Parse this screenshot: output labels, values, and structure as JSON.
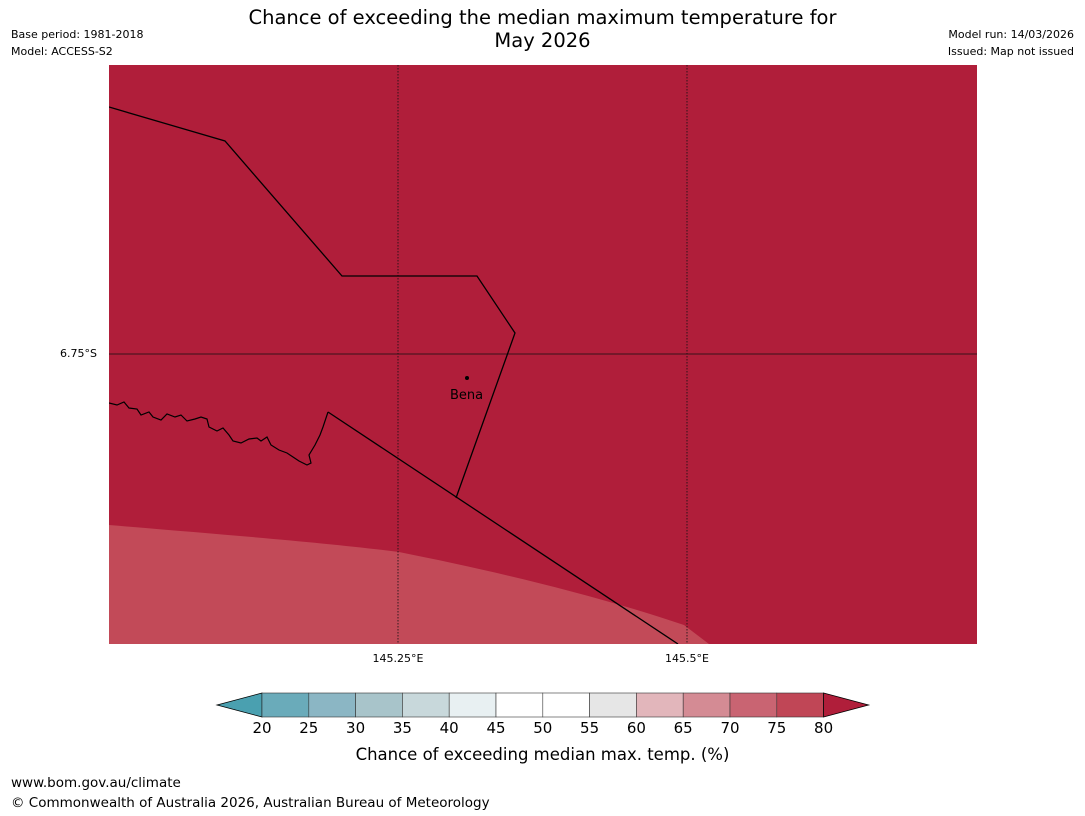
{
  "title": "Chance of exceeding the median maximum temperature for\nMay 2026",
  "meta": {
    "base_period": "Base period: 1981-2018",
    "model": "Model: ACCESS-S2",
    "model_run": "Model run: 14/03/2026",
    "issued": "Issued: Map not issued"
  },
  "map": {
    "lat_label": "6.75°S",
    "lon_labels": [
      "145.25°E",
      "145.5°E"
    ],
    "place": "Bena",
    "fill_colors": {
      "above_80": "#b01e3a",
      "75_80": "#c24a58"
    }
  },
  "legend": {
    "ticks": [
      "20",
      "25",
      "30",
      "35",
      "40",
      "45",
      "50",
      "55",
      "60",
      "65",
      "70",
      "75",
      "80"
    ],
    "colors": [
      "#4aa0b0",
      "#6aabba",
      "#8bb6c4",
      "#a8c4ca",
      "#c8d8db",
      "#e8f0f2",
      "#ffffff",
      "#ffffff",
      "#e6e6e6",
      "#e2b6bb",
      "#d48b94",
      "#c96472",
      "#c04656",
      "#b01e3a"
    ],
    "label": "Chance of exceeding median max. temp. (%)"
  },
  "footer": {
    "website": "www.bom.gov.au/climate",
    "copyright": "© Commonwealth of Australia 2026, Australian Bureau of Meteorology"
  }
}
